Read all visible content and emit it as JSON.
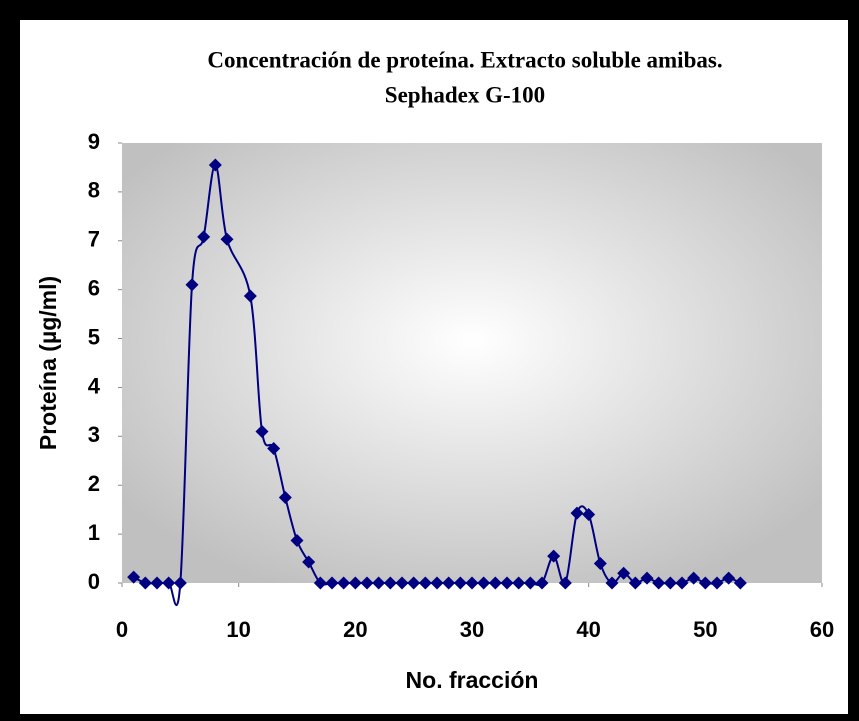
{
  "chart_data": {
    "type": "line",
    "title": [
      "Concentración de proteína. Extracto soluble amibas.",
      "Sephadex G-100"
    ],
    "xlabel": "No. fracción",
    "ylabel": "Proteína (µg/ml)",
    "x": [
      1,
      2,
      3,
      4,
      5,
      6,
      7,
      8,
      9,
      11,
      12,
      13,
      14,
      15,
      16,
      17,
      18,
      19,
      20,
      21,
      22,
      23,
      24,
      25,
      26,
      27,
      28,
      29,
      30,
      31,
      32,
      33,
      34,
      35,
      36,
      37,
      38,
      39,
      40,
      41,
      42,
      43,
      44,
      45,
      46,
      47,
      48,
      49,
      50,
      51,
      52,
      53
    ],
    "series": [
      {
        "color": "#000080",
        "values": [
          0.12,
          0,
          0,
          0,
          0,
          6.1,
          7.08,
          8.55,
          7.03,
          5.87,
          3.1,
          2.75,
          1.75,
          0.87,
          0.43,
          0,
          0,
          0,
          0,
          0,
          0,
          0,
          0,
          0,
          0,
          0,
          0,
          0,
          0,
          0,
          0,
          0,
          0,
          0,
          0,
          0.55,
          0,
          1.43,
          1.4,
          0.4,
          0,
          0.2,
          0,
          0.1,
          0,
          0,
          0,
          0.1,
          0,
          0,
          0.1,
          0
        ]
      }
    ],
    "xlim": [
      0,
      60
    ],
    "xticks": [
      0,
      10,
      20,
      30,
      40,
      50,
      60
    ],
    "ylim": [
      0,
      9
    ],
    "yticks": [
      0,
      1,
      2,
      3,
      4,
      5,
      6,
      7,
      8,
      9
    ],
    "smooth": true,
    "marker": "diamond",
    "plot_background": "#c0c0c0"
  }
}
